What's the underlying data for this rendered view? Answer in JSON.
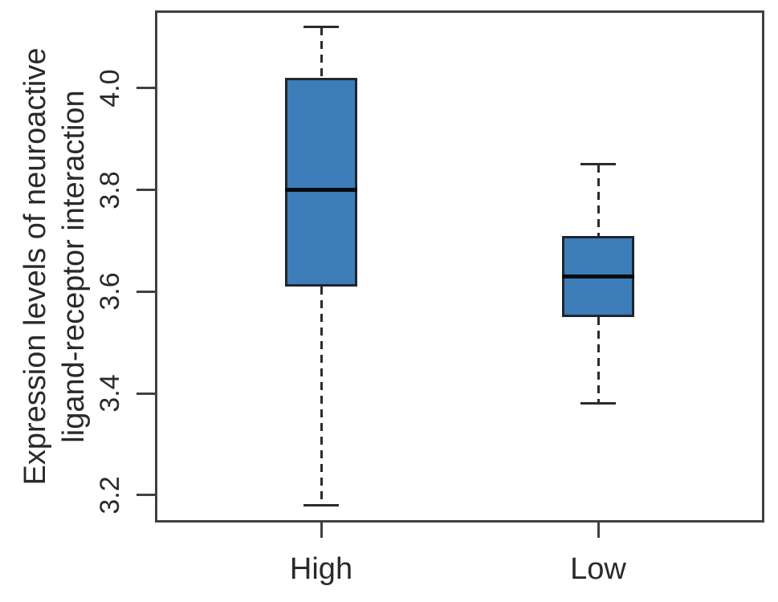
{
  "figure": {
    "background": "#ffffff"
  },
  "chart_data": {
    "type": "boxplot",
    "title": "",
    "xlabel": "",
    "ylabel": "Expression levels of neuroactive ligand-receptor interaction",
    "ylabel_lines": [
      "Expression levels of neuroactive",
      "ligand-receptor interaction"
    ],
    "categories": [
      "High",
      "Low"
    ],
    "yticks": [
      3.2,
      3.4,
      3.6,
      3.8,
      4.0
    ],
    "ylim": [
      3.146,
      4.153
    ],
    "grid": false,
    "legend": null,
    "series": [
      {
        "name": "High",
        "whisker_low": 3.18,
        "q1": 3.61,
        "median": 3.8,
        "q3": 4.02,
        "whisker_high": 4.12,
        "outliers": []
      },
      {
        "name": "Low",
        "whisker_low": 3.38,
        "q1": 3.55,
        "median": 3.63,
        "q3": 3.71,
        "whisker_high": 3.85,
        "outliers": []
      }
    ],
    "colors": {
      "box_fill": "#3d7db9",
      "box_edge": "#20252d",
      "median": "#0b0b10",
      "whisker": "#2b2b2b",
      "axis": "#404040",
      "text": "#2a2a2a"
    }
  }
}
